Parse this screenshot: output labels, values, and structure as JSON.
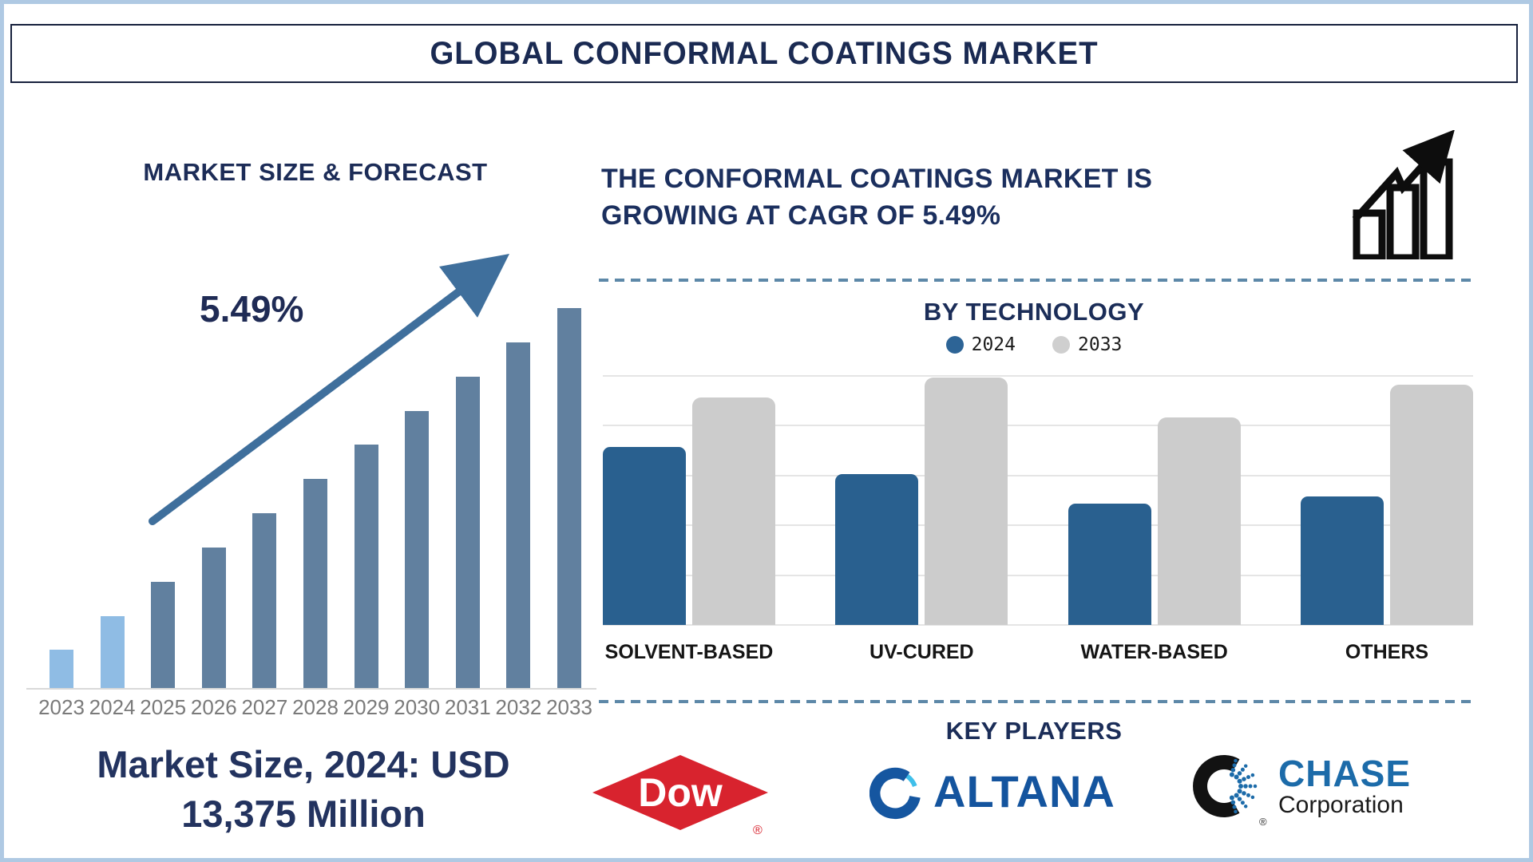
{
  "title_bar": {
    "title": "GLOBAL CONFORMAL COATINGS MARKET"
  },
  "forecast_section": {
    "heading": "MARKET SIZE & FORECAST",
    "cagr_label": "5.49%",
    "caption_line1": "Market Size, 2024: USD",
    "caption_line2": "13,375 Million"
  },
  "growth_section": {
    "heading_line1": "THE CONFORMAL COATINGS MARKET IS",
    "heading_line2": "GROWING AT CAGR OF 5.49%",
    "icon": "growth-bars-arrow-icon"
  },
  "technology_section": {
    "heading": "BY TECHNOLOGY",
    "legend": [
      {
        "label": "2024",
        "color": "#2D6496"
      },
      {
        "label": "2033",
        "color": "#CFCFCF"
      }
    ]
  },
  "key_players_section": {
    "heading": "KEY PLAYERS",
    "players": [
      {
        "name": "Dow",
        "reg_mark": "®",
        "brand_color": "#D8232E"
      },
      {
        "name": "ALTANA",
        "brand_color": "#14549E"
      },
      {
        "name": "CHASE",
        "subname": "Corporation",
        "reg_mark": "®",
        "brand_color": "#1C6BA9"
      }
    ]
  },
  "chart_data": [
    {
      "id": "market_size_forecast",
      "type": "bar",
      "title": "MARKET SIZE & FORECAST",
      "categories": [
        "2023",
        "2024",
        "2025",
        "2026",
        "2027",
        "2028",
        "2029",
        "2030",
        "2031",
        "2032",
        "2033"
      ],
      "values_relative": [
        10,
        19,
        28,
        37,
        46,
        55,
        64,
        73,
        82,
        91,
        100
      ],
      "value_axis": "none shown (stylized bar heights, 0-100 relative scale)",
      "annotation": "5.49% CAGR arrow",
      "known_point": {
        "year": "2024",
        "value": "USD 13,375 Million"
      },
      "bar_colors": [
        "#8FBCE4",
        "#8FBCE4",
        "#61809F",
        "#61809F",
        "#61809F",
        "#61809F",
        "#61809F",
        "#61809F",
        "#61809F",
        "#61809F",
        "#61809F"
      ],
      "grid": false,
      "legend_position": "none"
    },
    {
      "id": "by_technology",
      "type": "bar",
      "title": "BY TECHNOLOGY",
      "categories": [
        "SOLVENT-BASED",
        "UV-CURED",
        "WATER-BASED",
        "OTHERS"
      ],
      "series": [
        {
          "name": "2024",
          "color": "#29608F",
          "values_relative": [
            72,
            61,
            49,
            52
          ]
        },
        {
          "name": "2033",
          "color": "#CCCCCC",
          "values_relative": [
            92,
            100,
            84,
            97
          ]
        }
      ],
      "value_axis": "none shown (relative heights, 0-100 scale)",
      "grid": true,
      "legend_position": "top"
    }
  ],
  "colors": {
    "page_border": "#AFC9E3",
    "heading_navy": "#1B2D58",
    "arrow_steel_blue": "#3F6F9C",
    "dashed_divider": "#5D88A8",
    "axis_gray": "#D9D9D9",
    "year_label_gray": "#7A7A7A"
  }
}
